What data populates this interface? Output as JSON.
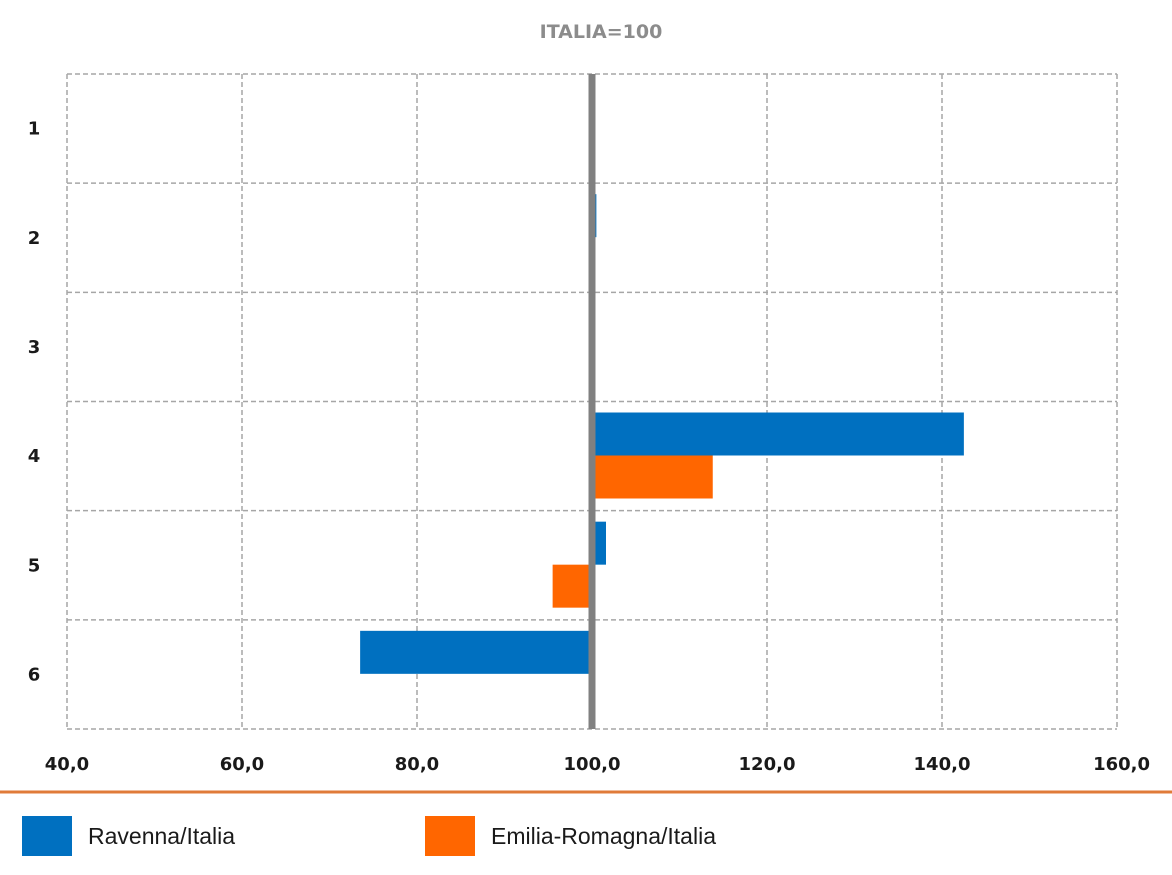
{
  "chart_data": {
    "type": "bar",
    "orientation": "horizontal",
    "title": "ITALIA=100",
    "categories": [
      "1",
      "2",
      "3",
      "4",
      "5",
      "6"
    ],
    "series": [
      {
        "name": "Ravenna/Italia",
        "color": "#0070c0",
        "values": [
          100.4,
          100.5,
          100.3,
          142.5,
          101.6,
          73.5
        ]
      },
      {
        "name": "Emilia-Romagna/Italia",
        "color": "#ff6600",
        "values": [
          100.2,
          100.3,
          100.0,
          113.8,
          95.5,
          100.0
        ]
      }
    ],
    "xlim": [
      40,
      160
    ],
    "xticks": [
      "40,0",
      "60,0",
      "80,0",
      "100,0",
      "120,0",
      "140,0",
      "160,0"
    ],
    "reference_line": 100,
    "grid": true,
    "legend_position": "bottom"
  }
}
